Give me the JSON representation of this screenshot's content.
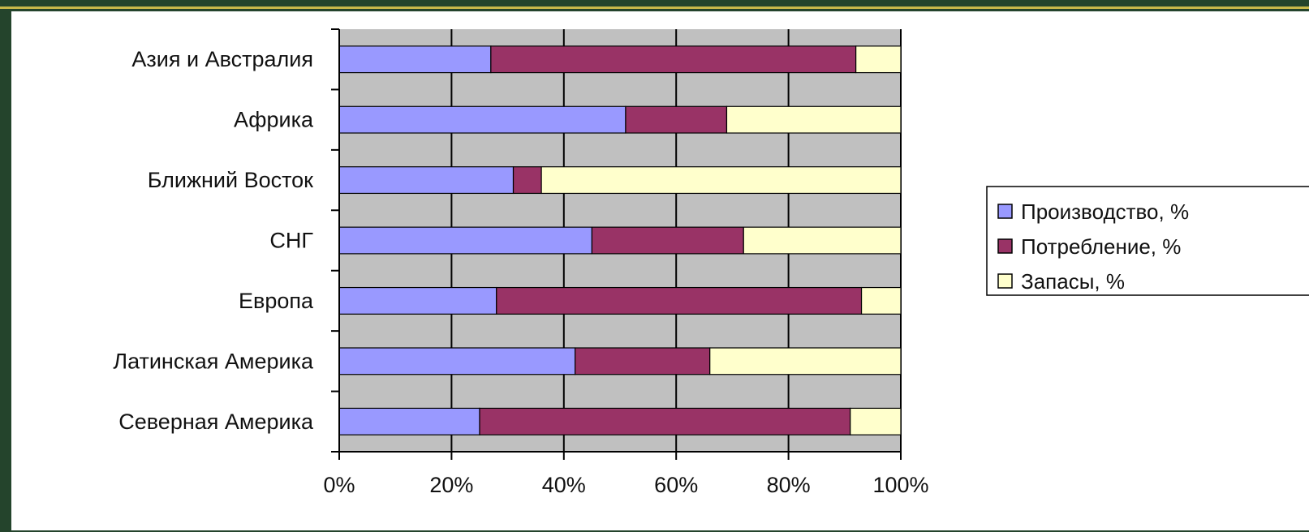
{
  "chart_data": {
    "type": "bar",
    "orientation": "horizontal",
    "stacked": "percent",
    "categories": [
      "Азия и Австралия",
      "Африка",
      "Ближний Восток",
      "СНГ",
      "Европа",
      "Латинская Америка",
      "Северная Америка"
    ],
    "series": [
      {
        "name": "Производство, %",
        "color": "#9999ff",
        "values": [
          27,
          51,
          31,
          45,
          28,
          42,
          25
        ]
      },
      {
        "name": "Потребление, %",
        "color": "#993366",
        "values": [
          65,
          18,
          5,
          27,
          65,
          24,
          66
        ]
      },
      {
        "name": "Запасы, %",
        "color": "#ffffcc",
        "values": [
          8,
          31,
          64,
          28,
          7,
          34,
          9
        ]
      }
    ],
    "xticks": [
      "0%",
      "20%",
      "40%",
      "60%",
      "80%",
      "100%"
    ],
    "xlim": [
      0,
      100
    ],
    "plot_background": "#c0c0c0",
    "gridlines": "vertical",
    "legend_position": "right",
    "title": "",
    "xlabel": "",
    "ylabel": ""
  }
}
